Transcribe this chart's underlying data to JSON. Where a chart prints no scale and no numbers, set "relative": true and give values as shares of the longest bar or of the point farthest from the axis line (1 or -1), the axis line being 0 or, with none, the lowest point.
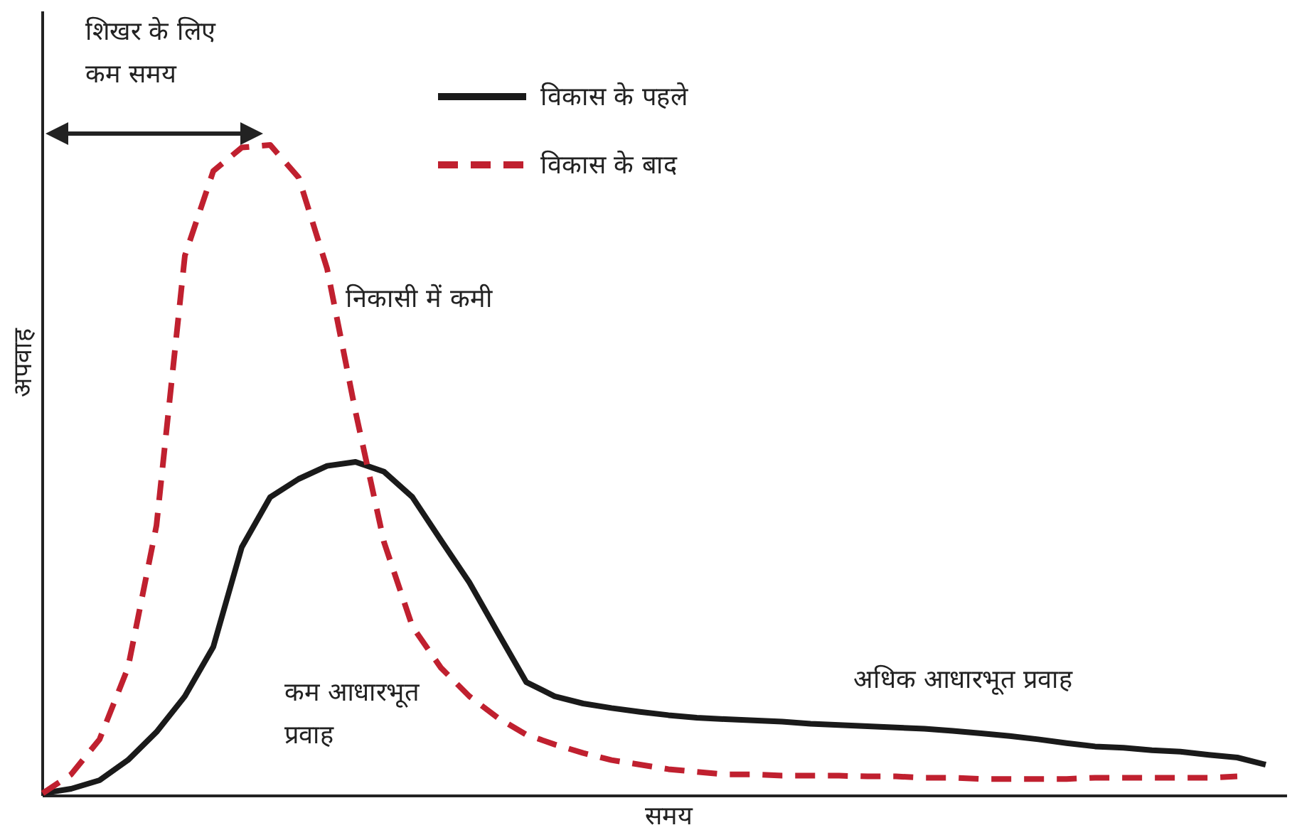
{
  "chart_data": {
    "type": "line",
    "relative": true,
    "xlabel": "समय",
    "ylabel": "अपवाह",
    "legend": "top",
    "categories": [
      null,
      null,
      null,
      null,
      null,
      null,
      null,
      null,
      null,
      null,
      null,
      null,
      null,
      null,
      null,
      null,
      null,
      null,
      null,
      null,
      null,
      null,
      null,
      null,
      null,
      null,
      null,
      null,
      null,
      null,
      null,
      null,
      null,
      null,
      null,
      null,
      null,
      null,
      null,
      null,
      null,
      null,
      null,
      null
    ],
    "series": [
      {
        "name": "विकास के पहले",
        "color": "#1a1a1a",
        "line_style": "solid",
        "values": [
          0.004,
          0.011,
          0.024,
          0.055,
          0.098,
          0.153,
          0.229,
          0.382,
          0.459,
          0.487,
          0.507,
          0.513,
          0.498,
          0.459,
          0.393,
          0.328,
          0.251,
          0.175,
          0.153,
          0.142,
          0.135,
          0.129,
          0.124,
          0.12,
          0.118,
          0.116,
          0.114,
          0.111,
          0.109,
          0.107,
          0.105,
          0.103,
          0.1,
          0.096,
          0.092,
          0.087,
          0.081,
          0.076,
          0.074,
          0.07,
          0.068,
          0.063,
          0.059,
          0.048
        ]
      },
      {
        "name": "विकास के बाद",
        "color": "#c0202f",
        "line_style": "dashed",
        "values": [
          0.004,
          0.033,
          0.087,
          0.197,
          0.415,
          0.83,
          0.96,
          0.996,
          1.0,
          0.95,
          0.81,
          0.59,
          0.39,
          0.26,
          0.197,
          0.153,
          0.12,
          0.094,
          0.079,
          0.066,
          0.055,
          0.048,
          0.041,
          0.037,
          0.033,
          0.033,
          0.031,
          0.031,
          0.031,
          0.03,
          0.03,
          0.028,
          0.028,
          0.026,
          0.026,
          0.026,
          0.026,
          0.028,
          0.028,
          0.028,
          0.028,
          0.028,
          0.03,
          null
        ]
      }
    ],
    "annotations": [
      "शिखर के लिए\nकम समय",
      "निकासी में कमी",
      "कम आधारभूत\nप्रवाह",
      "अधिक आधारभूत प्रवाह"
    ]
  }
}
